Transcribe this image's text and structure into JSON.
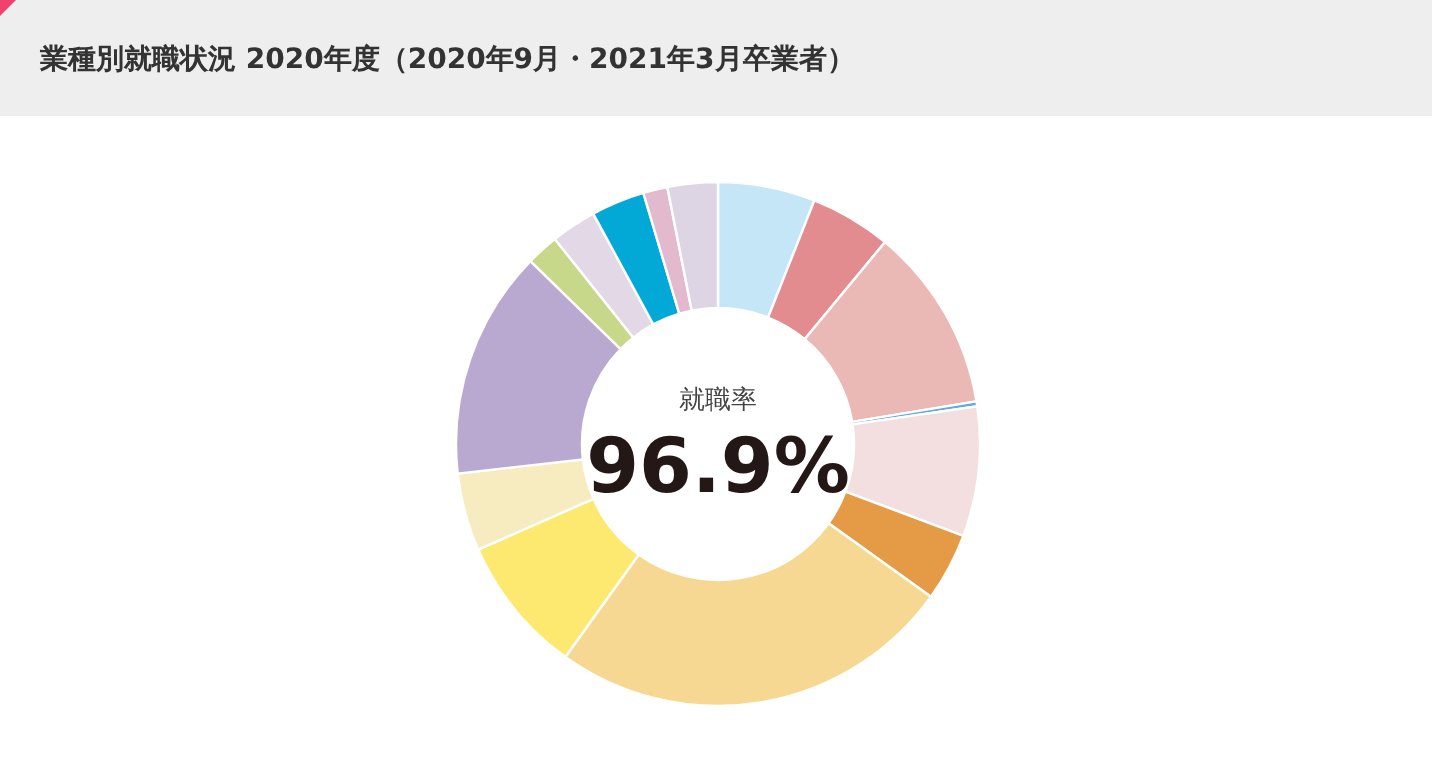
{
  "chart_data": {
    "type": "donut",
    "title": "業種別就職状況 2020年度（2020年9月・2021年3月卒業者）",
    "categories": [
      null,
      null,
      null,
      null,
      null,
      null,
      null,
      null,
      null,
      null,
      null,
      null,
      null,
      null,
      null
    ],
    "values": [
      6,
      5,
      11.4,
      0.3,
      8,
      4.2,
      25,
      8.5,
      4.8,
      14.1,
      2,
      2.8,
      3.3,
      1.5,
      3.1
    ],
    "colors": [
      "#c5e6f7",
      "#e28c8f",
      "#eab8b5",
      "#5aaee0",
      "#f4dfe0",
      "#e59a45",
      "#f6d892",
      "#fde870",
      "#f6ecc0",
      "#b9a9d1",
      "#c8d88a",
      "#e2d8e6",
      "#03a9d6",
      "#e2b9cd",
      "#ddd5e4"
    ],
    "annotations": [
      "就職率",
      "96.9%"
    ]
  }
}
